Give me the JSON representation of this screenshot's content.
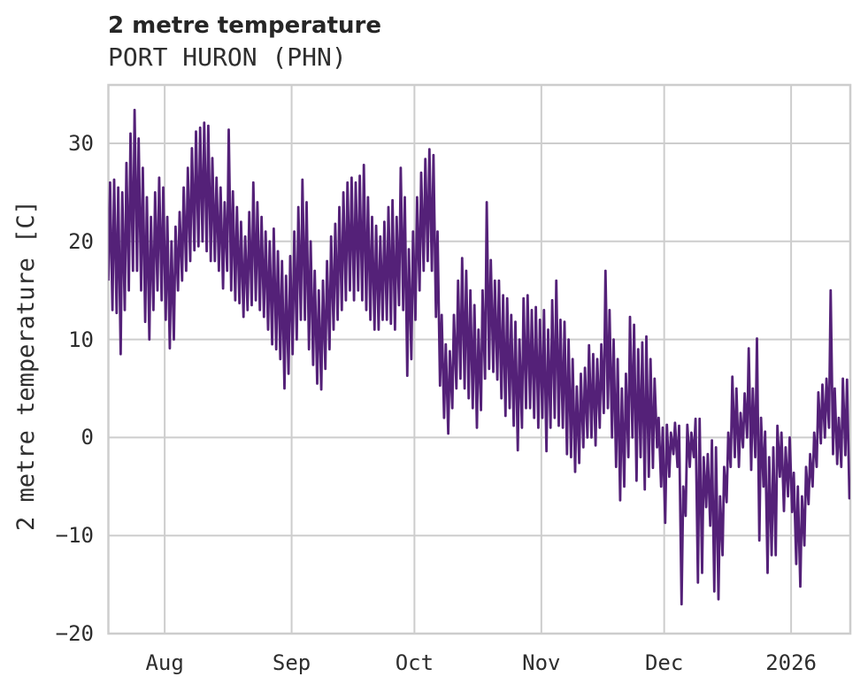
{
  "header": {
    "title": "2 metre temperature",
    "subtitle": "PORT HURON (PHN)"
  },
  "chart_data": {
    "type": "line",
    "title": "2 metre temperature",
    "subtitle": "PORT HURON (PHN)",
    "station": "PORT HURON (PHN)",
    "ylabel": "2 metre temperature [C]",
    "xlabel": "",
    "units": "C",
    "line_color": "#542178",
    "grid_color": "#cdcdcd",
    "text_color": "#262626",
    "background_color": "#ffffff",
    "grid": "on",
    "legend": "none",
    "ylim": [
      -20,
      36
    ],
    "y_ticks": [
      {
        "label": "30",
        "value": 30
      },
      {
        "label": "20",
        "value": 20
      },
      {
        "label": "10",
        "value": 10
      },
      {
        "label": "0",
        "value": 0
      },
      {
        "label": "−10",
        "value": -10
      },
      {
        "label": "−20",
        "value": -20
      }
    ],
    "x_ticks": [
      {
        "label": "Aug",
        "day": 14
      },
      {
        "label": "Sep",
        "day": 45
      },
      {
        "label": "Oct",
        "day": 75
      },
      {
        "label": "Nov",
        "day": 106
      },
      {
        "label": "Dec",
        "day": 136
      },
      {
        "label": "2026",
        "day": 167
      }
    ],
    "x_start_date": "2025-07-18",
    "x_end_date": "2026-01-15",
    "sampling": "daily minimum and maximum 2 m temperature, degrees C, day 0 = 2025-07-18",
    "daily_min": [
      16,
      13,
      12.7,
      8.5,
      13,
      15,
      17,
      17,
      15,
      11.8,
      10,
      13,
      15,
      14,
      12,
      9.1,
      10,
      15,
      16,
      17,
      18,
      19.1,
      19.5,
      20,
      19,
      18,
      18,
      17,
      15.2,
      17,
      15,
      14,
      13.7,
      12.3,
      13,
      13.5,
      14,
      13,
      12.3,
      11,
      9.5,
      9,
      8,
      5,
      6.5,
      8.5,
      10,
      12,
      12,
      9,
      7.4,
      5.5,
      4.9,
      7,
      9,
      11,
      12,
      13,
      14,
      15,
      14,
      15,
      14,
      13,
      12,
      11,
      11,
      12,
      12,
      11.6,
      11,
      13.5,
      13,
      6.3,
      8,
      12,
      15,
      17,
      18,
      17,
      12.3,
      5.3,
      2,
      0.4,
      3,
      5,
      6,
      5,
      4,
      3,
      1,
      2.8,
      6,
      7,
      6.7,
      5.9,
      4,
      2.2,
      3,
      1.2,
      -1.3,
      1,
      3,
      3,
      2,
      1,
      2,
      -1.4,
      1,
      2,
      1.2,
      1,
      -1.7,
      -2,
      -3.5,
      -2.6,
      -1,
      0,
      0,
      -0.8,
      1,
      2.5,
      3,
      0,
      -3,
      -6.4,
      -5,
      -2,
      0,
      -4.4,
      -2,
      -5.3,
      -4,
      -3.1,
      -1,
      -5,
      -8.7,
      -4,
      -1.7,
      -3,
      -17,
      -8,
      -3,
      -2,
      -14.8,
      -13.8,
      -7.1,
      -9,
      -15.7,
      -16.5,
      -12,
      -6.6,
      -3,
      -2,
      -3,
      -1,
      0,
      -3.3,
      -2,
      -10.5,
      -5,
      -13.8,
      -12,
      -12,
      -4,
      -7.5,
      -6,
      -7.6,
      -12.9,
      -15.2,
      -11,
      -6.8,
      -5,
      -3,
      -0.6,
      0,
      1,
      -1.7,
      -2.7,
      -3,
      -1.8,
      -6.2
    ],
    "daily_max": [
      26,
      26.3,
      25.5,
      25,
      28,
      31,
      33.4,
      30.5,
      27.5,
      24.5,
      22.5,
      25,
      26.5,
      25.5,
      22.5,
      20,
      21.5,
      23,
      25.5,
      27.5,
      29.5,
      31.2,
      31.6,
      32.1,
      31.8,
      28.5,
      26.5,
      25.5,
      24,
      31.4,
      25.1,
      23.5,
      22,
      20.5,
      23,
      26,
      24,
      22.5,
      21,
      20,
      21.3,
      19,
      18,
      16.5,
      18.5,
      21,
      23.5,
      26.3,
      24,
      20,
      17,
      15,
      16,
      18,
      20.5,
      21.8,
      23.5,
      25,
      26,
      26.5,
      26,
      26.7,
      27.8,
      24.5,
      22.5,
      21.6,
      20.5,
      22,
      23.5,
      24.2,
      22.5,
      27.5,
      24.5,
      19.2,
      21,
      24.5,
      27,
      28.4,
      29.4,
      28.8,
      21,
      12.5,
      9.5,
      8.8,
      12.5,
      16,
      18.3,
      17,
      15,
      13.5,
      11,
      15,
      24,
      18.1,
      16,
      16,
      14.5,
      14.2,
      12.5,
      11.8,
      10,
      14.2,
      14.5,
      13,
      13.3,
      12,
      13,
      11,
      14,
      16,
      12,
      11.8,
      10,
      8,
      5.2,
      6.5,
      7.1,
      9.4,
      8.5,
      8,
      9.5,
      17,
      13,
      10,
      8,
      5,
      6.5,
      12.3,
      11.5,
      9,
      9.7,
      10.3,
      8,
      6,
      2,
      1,
      1.3,
      0.5,
      1.5,
      1.2,
      -5,
      1.3,
      0.5,
      1.9,
      1.9,
      -2,
      -1.7,
      -0.3,
      -1,
      -6,
      -3,
      0.5,
      6.2,
      5,
      2.5,
      4.5,
      9.1,
      5,
      10.1,
      2,
      0.6,
      -2,
      -1,
      1.2,
      0.5,
      -1,
      0,
      -3.6,
      -5,
      -6,
      -3,
      -1.7,
      0.5,
      4.6,
      5.4,
      6,
      15,
      5,
      2,
      6,
      5.9,
      -6
    ],
    "final_point": {
      "day_frac": 181.6,
      "temp": -6.2
    }
  }
}
